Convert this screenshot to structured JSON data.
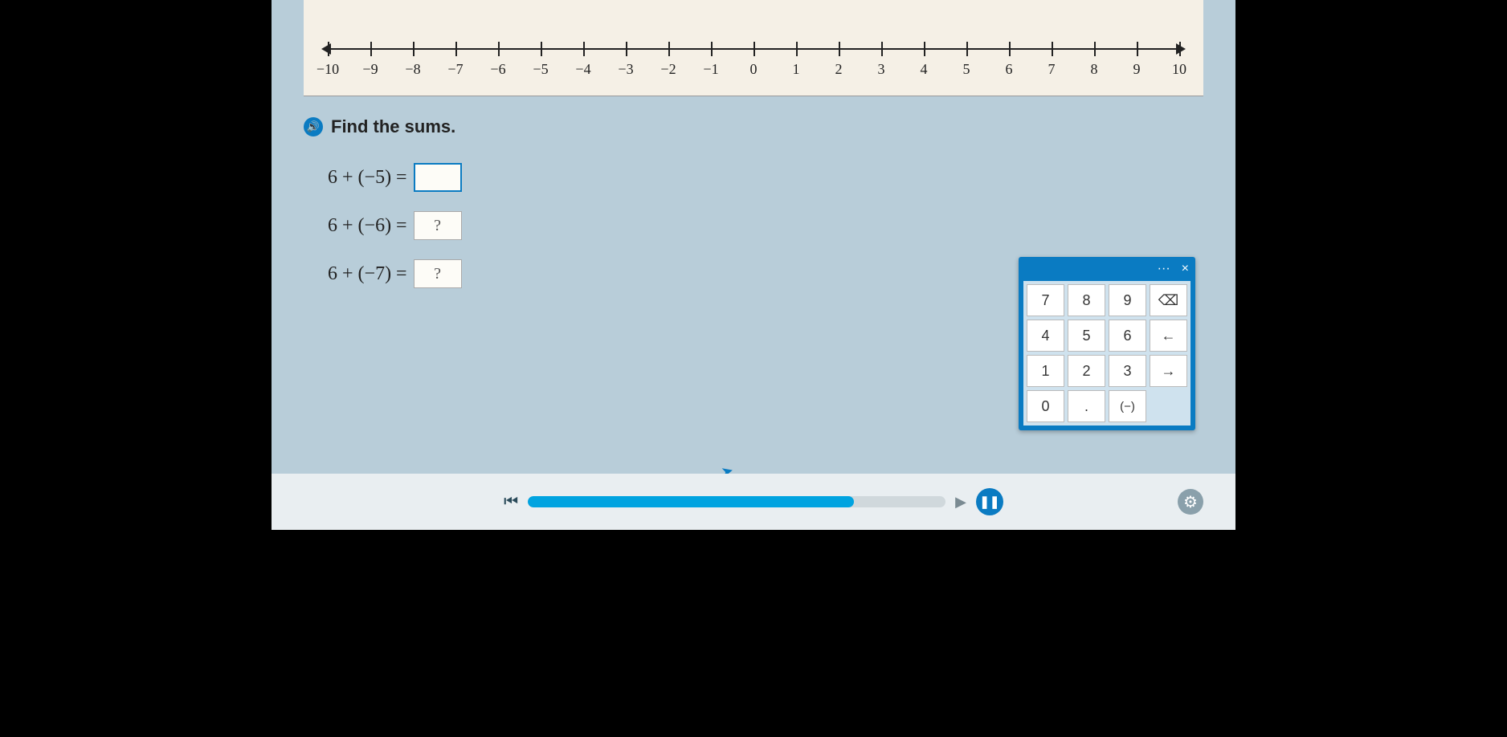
{
  "numberline": {
    "min": -10,
    "max": 10,
    "ticks": [
      -10,
      -9,
      -8,
      -7,
      -6,
      -5,
      -4,
      -3,
      -2,
      -1,
      0,
      1,
      2,
      3,
      4,
      5,
      6,
      7,
      8,
      9,
      10
    ],
    "labels": [
      "−10",
      "−9",
      "−8",
      "−7",
      "−6",
      "−5",
      "−4",
      "−3",
      "−2",
      "−1",
      "0",
      "1",
      "2",
      "3",
      "4",
      "5",
      "6",
      "7",
      "8",
      "9",
      "10"
    ],
    "line_color": "#222222",
    "label_fontsize": 18,
    "panel_bg": "#f5f0e6"
  },
  "instruction": {
    "text": "Find the sums.",
    "audio_icon": "🔊"
  },
  "equations": [
    {
      "expr": "6 + (−5) =",
      "answer": "",
      "active": true
    },
    {
      "expr": "6 + (−6) =",
      "answer": "?",
      "active": false
    },
    {
      "expr": "6 + (−7) =",
      "answer": "?",
      "active": false
    }
  ],
  "keypad": {
    "header": {
      "more": "···",
      "close": "×"
    },
    "rows": [
      [
        "7",
        "8",
        "9",
        "⌫"
      ],
      [
        "4",
        "5",
        "6",
        "←"
      ],
      [
        "1",
        "2",
        "3",
        "→"
      ],
      [
        "0",
        ".",
        "(−)",
        ""
      ]
    ],
    "bg": "#0a7bc2",
    "key_bg": "#ffffff",
    "grid_bg": "#cfe2ee"
  },
  "player": {
    "skip_back": "⏮",
    "skip_fwd": "▶",
    "pause": "❚❚",
    "gear": "⚙",
    "progress_pct": 78
  },
  "colors": {
    "screen_bg": "#b8cdd9",
    "accent": "#0a7bc2",
    "progress": "#00a3e0",
    "bottom_bar": "#e9eef1"
  }
}
